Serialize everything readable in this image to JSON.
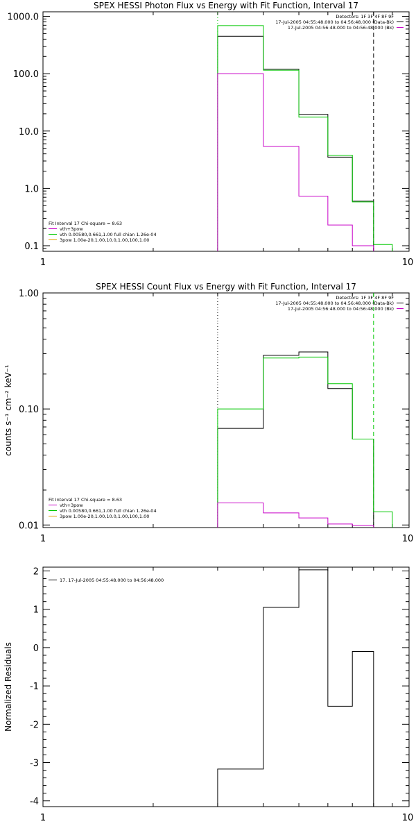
{
  "colors": {
    "black": "#000000",
    "green": "#00c800",
    "magenta": "#c800c8",
    "orange": "#e0a000"
  },
  "chart_data": [
    {
      "type": "step",
      "title": "SPEX HESSI Photon Flux vs Energy with Fit Function, Interval 17",
      "xscale": "log",
      "yscale": "log",
      "xlim": [
        1,
        10
      ],
      "ylim": [
        0.08,
        1200
      ],
      "xticks": [
        1,
        10
      ],
      "xtick_labels": [
        "1",
        "10"
      ],
      "yticks": [
        0.1,
        1,
        10,
        100,
        1000
      ],
      "ytick_labels": [
        "0.1",
        "1.0",
        "10.0",
        "100.0",
        "1000.0"
      ],
      "ylabel": "",
      "vlines": [
        {
          "x": 3,
          "color": "#00c800",
          "style": "dotted"
        },
        {
          "x": 8,
          "color": "#000000",
          "style": "dashed"
        }
      ],
      "legend_tr": {
        "lines": [
          {
            "text": "Detectors: 1F 3F 4F 8F 9F",
            "color": ""
          },
          {
            "text": "17-Jul-2005 04:55:48.000 to 04:56:48.000 (Data-Bk)",
            "color": "#000000"
          },
          {
            "text": "17-Jul-2005 04:56:48.000 to 04:56:48.000 (Bk)",
            "color": "#c800c8"
          }
        ]
      },
      "legend_bl": {
        "header": "Fit Interval 17    Chi-square = 8.63",
        "lines": [
          {
            "text": "vth+3pow",
            "color": "#c800c8"
          },
          {
            "text": "vth 0.00580,0.661,1.00   full chian 1.26e-04",
            "color": "#00c800"
          },
          {
            "text": "3pow 1.00e-20,1.00,10.0,1.00,100,1.00",
            "color": "#e0a000"
          }
        ]
      },
      "edges": [
        3,
        4,
        5,
        6,
        7,
        8,
        9
      ],
      "series": [
        {
          "color": "#000000",
          "values": [
            450,
            120,
            19.5,
            3.5,
            0.6,
            null
          ]
        },
        {
          "color": "#00c800",
          "values": [
            690,
            115,
            17.5,
            3.8,
            0.58,
            0.105
          ]
        },
        {
          "color": "#c800c8",
          "values": [
            100,
            5.4,
            0.73,
            0.23,
            0.1,
            null
          ]
        }
      ]
    },
    {
      "type": "step",
      "title": "SPEX HESSI Count Flux vs Energy with Fit Function, Interval 17",
      "xscale": "log",
      "yscale": "log",
      "xlim": [
        1,
        10
      ],
      "ylim": [
        0.0095,
        1.0
      ],
      "xticks": [
        1,
        10
      ],
      "xtick_labels": [
        "1",
        "10"
      ],
      "yticks": [
        0.01,
        0.1,
        1.0
      ],
      "ytick_labels": [
        "0.01",
        "0.10",
        "1.00"
      ],
      "ylabel": "counts s⁻¹ cm⁻² keV⁻¹",
      "vlines": [
        {
          "x": 3,
          "color": "#000000",
          "style": "dotted"
        },
        {
          "x": 8,
          "color": "#00c800",
          "style": "dashed"
        }
      ],
      "legend_tr": {
        "lines": [
          {
            "text": "Detectors: 1F 3F 4F 8F 9F",
            "color": ""
          },
          {
            "text": "17-Jul-2005 04:55:48.000 to 04:56:48.000 (Data-Bk)",
            "color": "#000000"
          },
          {
            "text": "17-Jul-2005 04:56:48.000 to 04:56:48.000 (Bk)",
            "color": "#c800c8"
          }
        ]
      },
      "legend_bl": {
        "header": "Fit Interval 17    Chi-square = 8.63",
        "lines": [
          {
            "text": "vth+3pow",
            "color": "#c800c8"
          },
          {
            "text": "vth 0.00580,0.661,1.00   full chian 1.26e-04",
            "color": "#00c800"
          },
          {
            "text": "3pow 1.00e-20,1.00,10.0,1.00,100,1.00",
            "color": "#e0a000"
          }
        ]
      },
      "edges": [
        3,
        4,
        5,
        6,
        7,
        8,
        9
      ],
      "series": [
        {
          "color": "#000000",
          "values": [
            0.068,
            0.29,
            0.31,
            0.15,
            0.055,
            0.0095
          ]
        },
        {
          "color": "#00c800",
          "values": [
            0.1,
            0.275,
            0.28,
            0.165,
            0.055,
            0.013
          ]
        },
        {
          "color": "#c800c8",
          "values": [
            0.0155,
            0.0127,
            0.0115,
            0.0102,
            0.0099,
            null
          ]
        }
      ]
    },
    {
      "type": "step",
      "title": "",
      "xscale": "log",
      "yscale": "linear",
      "xlim": [
        1,
        10
      ],
      "ylim": [
        -4.15,
        2.1
      ],
      "xticks": [
        1,
        10
      ],
      "xtick_labels": [
        "1",
        "10"
      ],
      "yticks": [
        -4,
        -3,
        -2,
        -1,
        0,
        1,
        2
      ],
      "ytick_labels": [
        "-4",
        "-3",
        "-2",
        "-1",
        "0",
        "1",
        "2"
      ],
      "ylabel": "Normalized Residuals",
      "vlines": [],
      "legend_tl": {
        "lines": [
          {
            "text": "17. 17-Jul-2005 04:55:48.000 to 04:56:48.000",
            "color": "#000000"
          }
        ]
      },
      "edges": [
        3,
        4,
        5,
        6,
        7,
        8
      ],
      "series": [
        {
          "color": "#000000",
          "values": [
            -3.17,
            1.05,
            2.03,
            -1.53,
            -0.1
          ]
        }
      ]
    }
  ]
}
